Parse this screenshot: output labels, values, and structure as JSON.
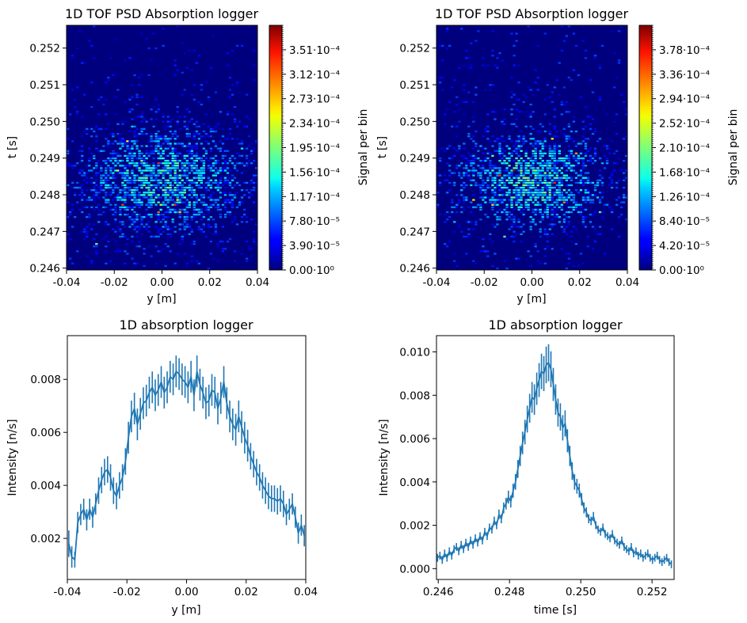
{
  "chart_data": [
    {
      "type": "heatmap",
      "title": "1D TOF PSD Absorption logger",
      "xlabel": "y [m]",
      "ylabel": "t [s]",
      "colorbar_label": "Signal per bin",
      "colormap": "jet",
      "xlim": [
        -0.04,
        0.04
      ],
      "ylim": [
        0.24595,
        0.25262
      ],
      "xticks": [
        "-0.04",
        "-0.02",
        "0.00",
        "0.02",
        "0.04"
      ],
      "xtick_values": [
        -0.04,
        -0.02,
        0.0,
        0.02,
        0.04
      ],
      "yticks": [
        "0.246",
        "0.247",
        "0.248",
        "0.249",
        "0.250",
        "0.251",
        "0.252"
      ],
      "ytick_values": [
        0.246,
        0.247,
        0.248,
        0.249,
        0.25,
        0.251,
        0.252
      ],
      "clim": [
        0,
        0.00039
      ],
      "colorbar_ticks": [
        "0.00·10⁰",
        "3.90·10⁻⁵",
        "7.80·10⁻⁵",
        "1.17·10⁻⁴",
        "1.56·10⁻⁴",
        "1.95·10⁻⁴",
        "2.34·10⁻⁴",
        "2.73·10⁻⁴",
        "3.12·10⁻⁴",
        "3.51·10⁻⁴"
      ],
      "colorbar_tick_values": [
        0,
        3.9e-05,
        7.8e-05,
        0.000117,
        0.000156,
        0.000195,
        0.000234,
        0.000273,
        0.000312,
        0.000351
      ],
      "grid": {
        "nx": 80,
        "nt": 100,
        "peak_t": 0.2484,
        "t_sigma": 0.0009,
        "y_sigma": 0.022,
        "peak_value": 0.00013,
        "seed": 7
      }
    },
    {
      "type": "heatmap",
      "title": "1D TOF PSD Absorption logger",
      "xlabel": "y [m]",
      "ylabel": "t [s]",
      "colorbar_label": "Signal per bin",
      "colormap": "jet",
      "xlim": [
        -0.04,
        0.04
      ],
      "ylim": [
        0.24595,
        0.25262
      ],
      "xticks": [
        "-0.04",
        "-0.02",
        "0.00",
        "0.02",
        "0.04"
      ],
      "xtick_values": [
        -0.04,
        -0.02,
        0.0,
        0.02,
        0.04
      ],
      "yticks": [
        "0.246",
        "0.247",
        "0.248",
        "0.249",
        "0.250",
        "0.251",
        "0.252"
      ],
      "ytick_values": [
        0.246,
        0.247,
        0.248,
        0.249,
        0.25,
        0.251,
        0.252
      ],
      "clim": [
        0,
        0.00042
      ],
      "colorbar_ticks": [
        "0.00·10⁰",
        "4.20·10⁻⁵",
        "8.40·10⁻⁵",
        "1.26·10⁻⁴",
        "1.68·10⁻⁴",
        "2.10·10⁻⁴",
        "2.52·10⁻⁴",
        "2.94·10⁻⁴",
        "3.36·10⁻⁴",
        "3.78·10⁻⁴"
      ],
      "colorbar_tick_values": [
        0,
        4.2e-05,
        8.4e-05,
        0.000126,
        0.000168,
        0.00021,
        0.000252,
        0.000294,
        0.000336,
        0.000378
      ],
      "grid": {
        "nx": 80,
        "nt": 100,
        "peak_t": 0.2484,
        "t_sigma": 0.0008,
        "y_sigma": 0.02,
        "peak_value": 0.00015,
        "seed": 13
      }
    },
    {
      "type": "line",
      "title": "1D absorption logger",
      "xlabel": "y [m]",
      "ylabel": "Intensity [n/s]",
      "xlim": [
        -0.04,
        0.04
      ],
      "ylim": [
        0.00045,
        0.00965
      ],
      "xticks": [
        "-0.04",
        "-0.02",
        "0.00",
        "0.02",
        "0.04"
      ],
      "xtick_values": [
        -0.04,
        -0.02,
        0.0,
        0.02,
        0.04
      ],
      "yticks": [
        "0.002",
        "0.004",
        "0.006",
        "0.008"
      ],
      "ytick_values": [
        0.002,
        0.004,
        0.006,
        0.008
      ],
      "series": [
        {
          "name": "1D absorption logger",
          "color": "#1f77b4",
          "x": [
            -0.0395,
            -0.0385,
            -0.0375,
            -0.0365,
            -0.0355,
            -0.0345,
            -0.0335,
            -0.0325,
            -0.0315,
            -0.0305,
            -0.0295,
            -0.0285,
            -0.0275,
            -0.0265,
            -0.0255,
            -0.0245,
            -0.0235,
            -0.0225,
            -0.0215,
            -0.0205,
            -0.0195,
            -0.0185,
            -0.0175,
            -0.0165,
            -0.0155,
            -0.0145,
            -0.0135,
            -0.0125,
            -0.0115,
            -0.0105,
            -0.0095,
            -0.0085,
            -0.0075,
            -0.0065,
            -0.0055,
            -0.0045,
            -0.0035,
            -0.0025,
            -0.0015,
            -0.0005,
            0.0005,
            0.0015,
            0.0025,
            0.0035,
            0.0045,
            0.0055,
            0.0065,
            0.0075,
            0.0085,
            0.0095,
            0.0105,
            0.0115,
            0.0125,
            0.0135,
            0.0145,
            0.0155,
            0.0165,
            0.0175,
            0.0185,
            0.0195,
            0.0205,
            0.0215,
            0.0225,
            0.0235,
            0.0245,
            0.0255,
            0.0265,
            0.0275,
            0.0285,
            0.0295,
            0.0305,
            0.0315,
            0.0325,
            0.0335,
            0.0345,
            0.0355,
            0.0365,
            0.0375,
            0.0385,
            0.0395
          ],
          "values": [
            0.0018,
            0.0013,
            0.0012,
            0.0026,
            0.0029,
            0.0031,
            0.0027,
            0.0031,
            0.0028,
            0.0033,
            0.0038,
            0.0042,
            0.0045,
            0.0046,
            0.0043,
            0.0038,
            0.0036,
            0.004,
            0.0043,
            0.0049,
            0.0058,
            0.0066,
            0.0069,
            0.0063,
            0.0067,
            0.0071,
            0.0072,
            0.0075,
            0.0077,
            0.0074,
            0.0076,
            0.0079,
            0.0075,
            0.0077,
            0.0081,
            0.008,
            0.0083,
            0.0082,
            0.008,
            0.0079,
            0.0077,
            0.0081,
            0.0074,
            0.0083,
            0.0078,
            0.0075,
            0.0071,
            0.0072,
            0.0076,
            0.0075,
            0.0069,
            0.0073,
            0.0079,
            0.0071,
            0.0066,
            0.0063,
            0.0061,
            0.0066,
            0.0062,
            0.0058,
            0.0055,
            0.0051,
            0.0048,
            0.0045,
            0.0043,
            0.004,
            0.0038,
            0.0036,
            0.0035,
            0.0035,
            0.0034,
            0.0035,
            0.0033,
            0.0029,
            0.0031,
            0.0033,
            0.0028,
            0.0022,
            0.0025,
            0.0021
          ],
          "errors": [
            0.0005,
            0.0004,
            0.0003,
            0.0004,
            0.0004,
            0.0004,
            0.0004,
            0.0004,
            0.0004,
            0.0004,
            0.0005,
            0.0005,
            0.0005,
            0.0005,
            0.0005,
            0.0005,
            0.0005,
            0.0005,
            0.0005,
            0.0005,
            0.0006,
            0.0006,
            0.0006,
            0.0006,
            0.0006,
            0.0006,
            0.0006,
            0.0006,
            0.0006,
            0.0006,
            0.0006,
            0.0006,
            0.0006,
            0.0006,
            0.0006,
            0.0006,
            0.0006,
            0.0006,
            0.0006,
            0.0006,
            0.0006,
            0.0006,
            0.0006,
            0.0006,
            0.0006,
            0.0006,
            0.0006,
            0.0006,
            0.0006,
            0.0006,
            0.0006,
            0.0006,
            0.0006,
            0.0006,
            0.0006,
            0.0006,
            0.0006,
            0.0006,
            0.0006,
            0.0006,
            0.0006,
            0.0005,
            0.0005,
            0.0005,
            0.0005,
            0.0005,
            0.0005,
            0.0005,
            0.0005,
            0.0005,
            0.0005,
            0.0005,
            0.0005,
            0.0004,
            0.0004,
            0.0004,
            0.0004,
            0.0004,
            0.0004,
            0.0004
          ]
        }
      ]
    },
    {
      "type": "line",
      "title": "1D absorption logger",
      "xlabel": "time [s]",
      "ylabel": "Intensity [n/s]",
      "xlim": [
        0.24595,
        0.25262
      ],
      "ylim": [
        -0.0005,
        0.01075
      ],
      "xticks": [
        "0.246",
        "0.248",
        "0.250",
        "0.252"
      ],
      "xtick_values": [
        0.246,
        0.248,
        0.25,
        0.252
      ],
      "yticks": [
        "0.000",
        "0.002",
        "0.004",
        "0.006",
        "0.008",
        "0.010"
      ],
      "ytick_values": [
        0.0,
        0.002,
        0.004,
        0.006,
        0.008,
        0.01
      ],
      "series": [
        {
          "name": "1D absorption logger",
          "color": "#1f77b4",
          "x_start": 0.24598,
          "x_step": 6.63e-05,
          "values": [
            0.0005,
            0.0006,
            0.0004,
            0.0007,
            0.0005,
            0.0008,
            0.0006,
            0.0009,
            0.001,
            0.0008,
            0.0011,
            0.0009,
            0.0012,
            0.001,
            0.0013,
            0.0011,
            0.0014,
            0.0012,
            0.0015,
            0.0013,
            0.0017,
            0.0015,
            0.0019,
            0.0018,
            0.0022,
            0.002,
            0.0025,
            0.0023,
            0.0028,
            0.003,
            0.0033,
            0.0031,
            0.0036,
            0.004,
            0.0046,
            0.0052,
            0.0058,
            0.0063,
            0.0069,
            0.0074,
            0.0079,
            0.0078,
            0.0083,
            0.0087,
            0.0091,
            0.009,
            0.0094,
            0.0095,
            0.0092,
            0.0085,
            0.0078,
            0.0072,
            0.007,
            0.0065,
            0.0067,
            0.0059,
            0.0052,
            0.0045,
            0.004,
            0.0038,
            0.0036,
            0.0032,
            0.0028,
            0.0026,
            0.0023,
            0.0022,
            0.0024,
            0.002,
            0.0018,
            0.0017,
            0.0019,
            0.0016,
            0.0015,
            0.0014,
            0.0016,
            0.0013,
            0.0012,
            0.0011,
            0.0013,
            0.001,
            0.0009,
            0.0008,
            0.001,
            0.0007,
            0.0008,
            0.0006,
            0.0007,
            0.0005,
            0.0006,
            0.0007,
            0.0005,
            0.0004,
            0.0005,
            0.0006,
            0.0004,
            0.0003,
            0.0004,
            0.0005,
            0.0003,
            0.0002
          ],
          "error_fraction": 0.09,
          "error_min": 0.00018
        }
      ]
    }
  ]
}
